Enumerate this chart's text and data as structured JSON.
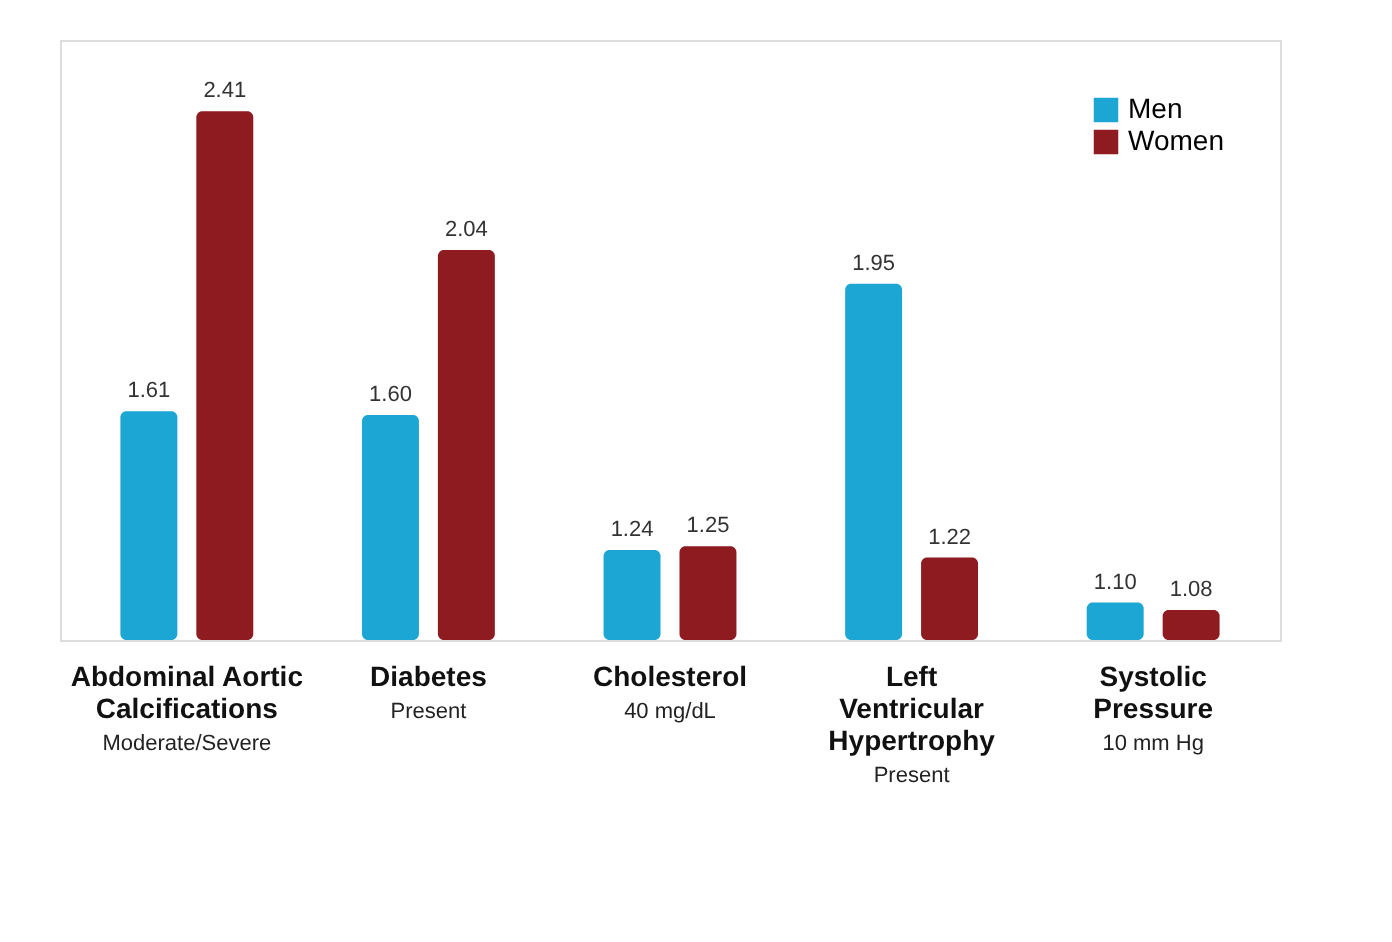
{
  "chart_data": {
    "type": "bar",
    "categories": [
      "Abdominal Aortic\nCalcifications\nModerate/Severe",
      "Diabetes\nPresent",
      "Cholesterol\n40 mg/dL",
      "Left\nVentricular\nHypertrophy\nPresent",
      "Systolic\nPressure\n10 mm Hg"
    ],
    "series": [
      {
        "name": "Men",
        "color": "#1ba6d4",
        "values": [
          1.61,
          1.6,
          1.24,
          1.95,
          1.1
        ],
        "value_labels": [
          "1.61",
          "1.60",
          "1.24",
          "1.95",
          "1.10"
        ]
      },
      {
        "name": "Women",
        "color": "#8e1b1f",
        "values": [
          2.41,
          2.04,
          1.25,
          1.22,
          1.08
        ],
        "value_labels": [
          "2.41",
          "2.04",
          "1.25",
          "1.22",
          "1.08"
        ]
      }
    ],
    "ylim": [
      1,
      2.6
    ],
    "tick_labels": false,
    "legend": "top right"
  }
}
